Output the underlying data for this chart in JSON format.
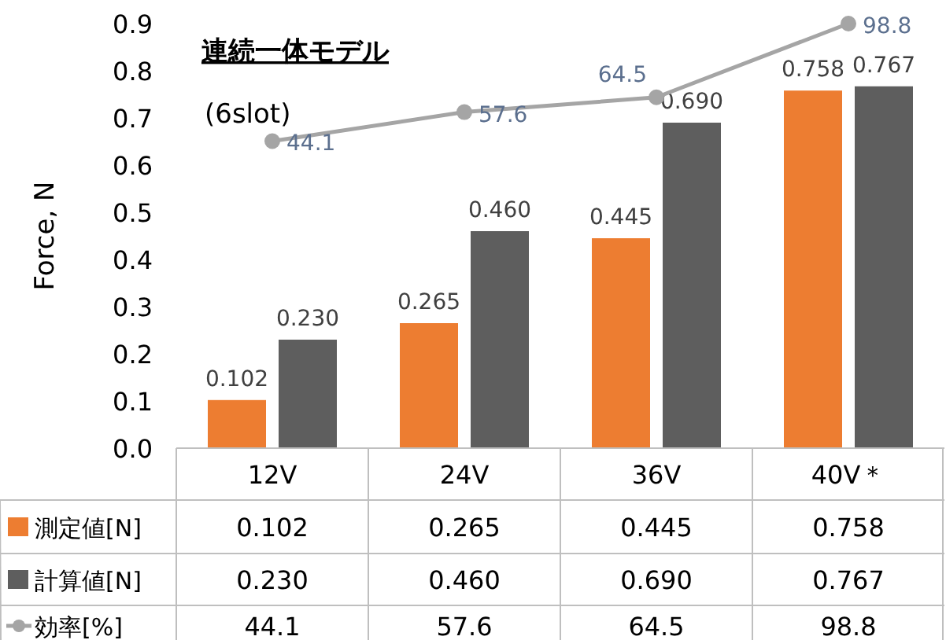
{
  "chart_data": {
    "type": "bar",
    "title": "連続一体モデル",
    "annotations": [
      "(6slot)"
    ],
    "ylabel": "Force, N",
    "categories": [
      "12V",
      "24V",
      "36V",
      "40V＊"
    ],
    "series": [
      {
        "name": "測定値[N]",
        "color": "#ed7d31",
        "values": [
          0.102,
          0.265,
          0.445,
          0.758
        ],
        "value_labels": [
          "0.102",
          "0.265",
          "0.445",
          "0.758"
        ]
      },
      {
        "name": "計算値[N]",
        "color": "#5e5e5e",
        "values": [
          0.23,
          0.46,
          0.69,
          0.767
        ],
        "value_labels": [
          "0.230",
          "0.460",
          "0.690",
          "0.767"
        ]
      },
      {
        "name": "効率[%]",
        "type": "line",
        "axis": "y2",
        "color": "#a5a5a5",
        "values": [
          44.1,
          57.6,
          64.5,
          98.8
        ],
        "value_labels": [
          "44.1",
          "57.6",
          "64.5",
          "98.8"
        ]
      }
    ],
    "ylim": [
      0,
      0.9
    ],
    "yticks": [
      {
        "value": 0,
        "label": "0.0"
      },
      0.1,
      0.2,
      0.3,
      0.4,
      0.5,
      0.6,
      0.7,
      0.8,
      0.9
    ],
    "marker": "circle",
    "legend": "bottom",
    "grid": false
  }
}
